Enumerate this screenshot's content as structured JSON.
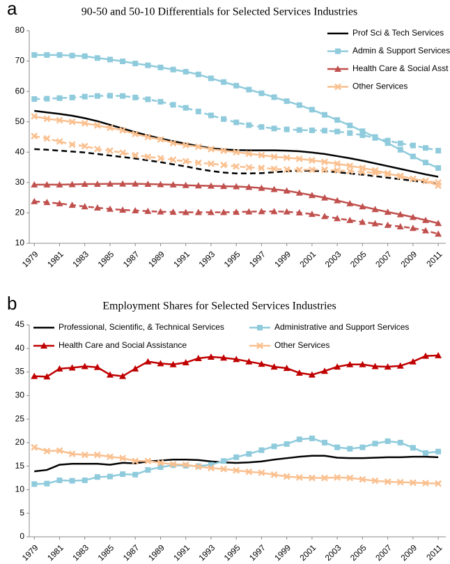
{
  "chart_data": [
    {
      "type": "line",
      "panel_label": "a",
      "title": "90-50 and 50-10 Differentials for Selected Services Industries",
      "x": [
        1979,
        1980,
        1981,
        1982,
        1983,
        1984,
        1985,
        1986,
        1987,
        1988,
        1989,
        1990,
        1991,
        1992,
        1993,
        1994,
        1995,
        1996,
        1997,
        1998,
        1999,
        2000,
        2001,
        2002,
        2003,
        2004,
        2005,
        2006,
        2007,
        2008,
        2009,
        2010,
        2011
      ],
      "xlim": [
        1978.6,
        2011.6
      ],
      "xticks": [
        1979,
        1981,
        1983,
        1985,
        1987,
        1989,
        1991,
        1993,
        1995,
        1997,
        1999,
        2001,
        2003,
        2005,
        2007,
        2009,
        2011
      ],
      "ylim": [
        10,
        80
      ],
      "yticks": [
        10,
        20,
        30,
        40,
        50,
        60,
        70,
        80
      ],
      "legend": "upper right",
      "series": [
        {
          "name": "Prof Sci & Tech Services",
          "color": "#000000",
          "marker": "none",
          "values": [
            53.6,
            53.1,
            52.6,
            52.0,
            51.2,
            50.2,
            49.0,
            47.8,
            46.6,
            45.5,
            44.5,
            43.6,
            42.8,
            42.0,
            41.3,
            40.9,
            40.7,
            40.6,
            40.6,
            40.6,
            40.5,
            40.3,
            39.9,
            39.4,
            38.7,
            38.0,
            37.2,
            36.3,
            35.4,
            34.5,
            33.6,
            32.7,
            31.9
          ],
          "dashed_values": [
            41.0,
            40.8,
            40.5,
            40.2,
            39.9,
            39.4,
            38.9,
            38.4,
            37.9,
            37.3,
            36.7,
            36.0,
            35.3,
            34.5,
            33.8,
            33.3,
            33.0,
            33.0,
            33.1,
            33.4,
            33.7,
            33.9,
            33.9,
            33.7,
            33.4,
            33.0,
            32.6,
            32.1,
            31.6,
            31.1,
            30.6,
            30.1,
            29.6
          ]
        },
        {
          "name": "Admin & Support Services",
          "color": "#8fcbdc",
          "marker": "square",
          "values": [
            72,
            72,
            72,
            71.8,
            71.6,
            71,
            70.5,
            69.9,
            69.2,
            68.6,
            67.9,
            67.2,
            66.5,
            65.6,
            64.3,
            63.1,
            61.9,
            60.6,
            59.4,
            58.1,
            56.8,
            55.5,
            54,
            52.3,
            50.6,
            48.8,
            46.9,
            45,
            43,
            40.8,
            38.6,
            36.6,
            34.8
          ],
          "dashed_values": [
            57.5,
            57.6,
            57.8,
            58.0,
            58.3,
            58.5,
            58.6,
            58.5,
            58.0,
            57.4,
            56.6,
            55.6,
            54.6,
            53.4,
            52.1,
            50.9,
            49.8,
            48.9,
            48.3,
            47.8,
            47.5,
            47.3,
            47.2,
            47.1,
            46.8,
            46.3,
            45.6,
            44.7,
            43.8,
            42.9,
            42.2,
            41.4,
            40.5
          ]
        },
        {
          "name": "Health Care & Social Asst",
          "color": "#c0504d",
          "marker": "triangle",
          "values": [
            29.3,
            29.3,
            29.3,
            29.4,
            29.5,
            29.5,
            29.6,
            29.6,
            29.6,
            29.5,
            29.4,
            29.3,
            29.1,
            29.0,
            28.9,
            28.8,
            28.7,
            28.5,
            28.2,
            27.8,
            27.3,
            26.6,
            25.8,
            25.0,
            24.1,
            23.1,
            22.1,
            21.2,
            20.3,
            19.5,
            18.6,
            17.6,
            16.6
          ],
          "dashed_values": [
            23.8,
            23.5,
            23.1,
            22.6,
            22.1,
            21.7,
            21.3,
            21.0,
            20.8,
            20.6,
            20.4,
            20.3,
            20.2,
            20.2,
            20.2,
            20.2,
            20.3,
            20.4,
            20.5,
            20.5,
            20.4,
            20.1,
            19.6,
            18.9,
            18.2,
            17.6,
            17.0,
            16.5,
            16.0,
            15.5,
            15.0,
            14.2,
            13.1
          ]
        },
        {
          "name": "Other Services",
          "color": "#fac090",
          "marker": "x",
          "values": [
            51.8,
            51,
            50.5,
            50,
            49.5,
            48.8,
            48,
            47.2,
            46,
            45,
            44.2,
            43,
            42.3,
            41.8,
            41,
            40.5,
            40,
            39.5,
            39,
            38.5,
            38.2,
            37.8,
            37.3,
            36.8,
            36.2,
            35.5,
            34.8,
            34,
            33,
            32,
            31.2,
            30.5,
            29
          ],
          "dashed_values": [
            45.3,
            44.5,
            43.5,
            42.5,
            42,
            41,
            40.5,
            39.8,
            39,
            38.5,
            38,
            37.5,
            37,
            36.5,
            36.2,
            35.8,
            35.3,
            35,
            34.8,
            34.5,
            34.3,
            34.2,
            34.2,
            34.2,
            34,
            33.8,
            33.5,
            33.2,
            32.8,
            32.2,
            31.2,
            30.5,
            30
          ]
        }
      ]
    },
    {
      "type": "line",
      "panel_label": "b",
      "title": "Employment Shares for Selected Services Industries",
      "x": [
        1979,
        1980,
        1981,
        1982,
        1983,
        1984,
        1985,
        1986,
        1987,
        1988,
        1989,
        1990,
        1991,
        1992,
        1993,
        1994,
        1995,
        1996,
        1997,
        1998,
        1999,
        2000,
        2001,
        2002,
        2003,
        2004,
        2005,
        2006,
        2007,
        2008,
        2009,
        2010,
        2011
      ],
      "xlim": [
        1978.6,
        2011.6
      ],
      "xticks": [
        1979,
        1981,
        1983,
        1985,
        1987,
        1989,
        1991,
        1993,
        1995,
        1997,
        1999,
        2001,
        2003,
        2005,
        2007,
        2009,
        2011
      ],
      "ylim": [
        0,
        45
      ],
      "yticks": [
        0,
        5,
        10,
        15,
        20,
        25,
        30,
        35,
        40,
        45
      ],
      "legend": "top",
      "series": [
        {
          "name": "Professional, Scientific, & Technical Services",
          "color": "#000000",
          "marker": "none",
          "values": [
            13.9,
            14.2,
            15.3,
            15.5,
            15.5,
            15.5,
            15.3,
            15.7,
            15.6,
            16.0,
            16.2,
            16.4,
            16.4,
            16.3,
            16.0,
            15.8,
            15.7,
            15.8,
            16.0,
            16.4,
            16.7,
            17.0,
            17.2,
            17.2,
            16.8,
            16.7,
            16.7,
            16.8,
            16.9,
            16.9,
            17.0,
            17.0,
            16.9
          ]
        },
        {
          "name": "Administrative and Support Services",
          "color": "#8fcbdc",
          "marker": "square",
          "values": [
            11.2,
            11.3,
            12.0,
            11.9,
            12.0,
            12.7,
            12.8,
            13.3,
            13.2,
            14.2,
            14.8,
            15.2,
            15.1,
            15.0,
            15.3,
            16.1,
            16.9,
            17.6,
            18.4,
            19.2,
            19.7,
            20.7,
            20.9,
            20.0,
            19.0,
            18.7,
            19.0,
            19.8,
            20.3,
            20.0,
            18.9,
            17.8,
            18.1
          ]
        },
        {
          "name": "Health Care and Social Assistance",
          "color": "#c00000",
          "marker": "triangle",
          "values": [
            34.1,
            34.0,
            35.7,
            35.9,
            36.2,
            36.0,
            34.4,
            34.1,
            35.7,
            37.2,
            36.8,
            36.6,
            37.0,
            37.9,
            38.2,
            38.0,
            37.7,
            37.2,
            36.7,
            36.1,
            35.8,
            34.8,
            34.4,
            35.2,
            36.1,
            36.6,
            36.6,
            36.2,
            36.1,
            36.3,
            37.2,
            38.4,
            38.5
          ]
        },
        {
          "name": "Other Services",
          "color": "#fac090",
          "marker": "x",
          "values": [
            19.0,
            18.2,
            18.3,
            17.6,
            17.4,
            17.4,
            17.0,
            16.7,
            16.1,
            16.1,
            15.7,
            15.4,
            15.3,
            14.9,
            14.6,
            14.4,
            14.1,
            13.8,
            13.6,
            13.2,
            12.8,
            12.6,
            12.5,
            12.5,
            12.6,
            12.5,
            12.2,
            11.9,
            11.7,
            11.6,
            11.5,
            11.4,
            11.3
          ]
        }
      ]
    }
  ]
}
